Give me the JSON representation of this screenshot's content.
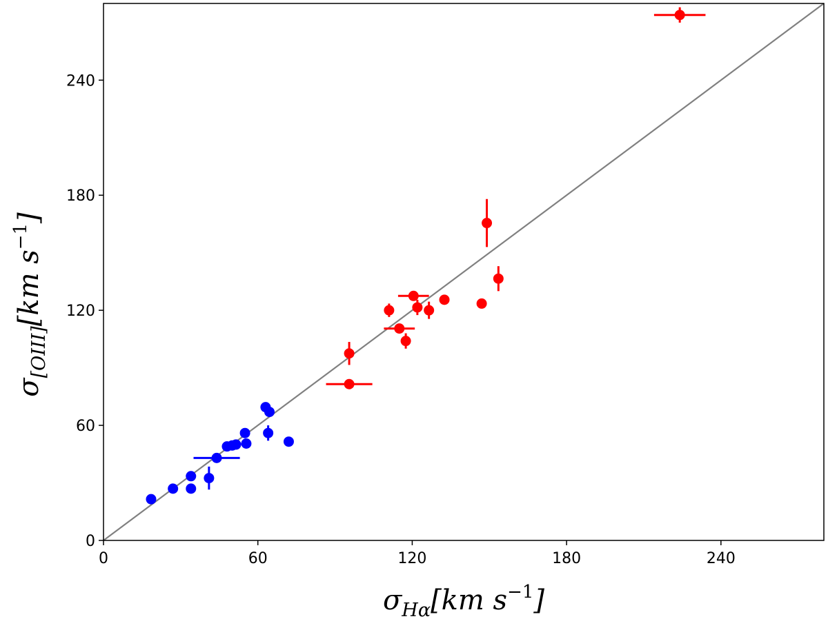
{
  "chart_data": {
    "type": "scatter",
    "title": "",
    "xlabel": {
      "sym": "σ",
      "sub": "Hα",
      "units_open": "[km s",
      "exp": "−1",
      "units_close": "]"
    },
    "ylabel": {
      "sym": "σ",
      "sub": "[OIII]",
      "units_open": "[km s",
      "exp": "−1",
      "units_close": "]"
    },
    "xlim": [
      0,
      280
    ],
    "ylim": [
      0,
      280
    ],
    "xticks": [
      0,
      60,
      120,
      180,
      240
    ],
    "yticks": [
      0,
      60,
      120,
      180,
      240
    ],
    "xtick_labels": [
      "0",
      "60",
      "120",
      "180",
      "240"
    ],
    "ytick_labels": [
      "0",
      "60",
      "120",
      "180",
      "240"
    ],
    "grid": false,
    "reference_line": {
      "name": "one-to-one",
      "color": "#808080",
      "x": [
        0,
        280
      ],
      "y": [
        0,
        280
      ]
    },
    "series": [
      {
        "name": "blue",
        "color": "#0000ff",
        "points": [
          {
            "x": 18.5,
            "y": 21.5,
            "xerr": 0,
            "yerr": 0
          },
          {
            "x": 27,
            "y": 27,
            "xerr": 0,
            "yerr": 0
          },
          {
            "x": 34,
            "y": 27,
            "xerr": 0,
            "yerr": 0
          },
          {
            "x": 34,
            "y": 33.5,
            "xerr": 0,
            "yerr": 0
          },
          {
            "x": 41,
            "y": 32.5,
            "xerr": 0,
            "yerr": 6
          },
          {
            "x": 44,
            "y": 43,
            "xerr": 9,
            "yerr": 0
          },
          {
            "x": 48,
            "y": 49,
            "xerr": 0,
            "yerr": 0
          },
          {
            "x": 50,
            "y": 49.5,
            "xerr": 0,
            "yerr": 0
          },
          {
            "x": 51.5,
            "y": 50,
            "xerr": 0,
            "yerr": 0
          },
          {
            "x": 55,
            "y": 56,
            "xerr": 0,
            "yerr": 0
          },
          {
            "x": 55.5,
            "y": 50.5,
            "xerr": 0,
            "yerr": 0
          },
          {
            "x": 63,
            "y": 69.5,
            "xerr": 0,
            "yerr": 0
          },
          {
            "x": 64,
            "y": 56,
            "xerr": 0,
            "yerr": 4
          },
          {
            "x": 64.5,
            "y": 67,
            "xerr": 0,
            "yerr": 0
          },
          {
            "x": 72,
            "y": 51.5,
            "xerr": 0,
            "yerr": 0
          }
        ]
      },
      {
        "name": "red",
        "color": "#ff0000",
        "points": [
          {
            "x": 95.5,
            "y": 81.5,
            "xerr": 9,
            "yerr": 0
          },
          {
            "x": 95.5,
            "y": 97.5,
            "xerr": 0,
            "yerr": 6
          },
          {
            "x": 111,
            "y": 120,
            "xerr": 0,
            "yerr": 3.5
          },
          {
            "x": 115,
            "y": 110.5,
            "xerr": 6,
            "yerr": 0
          },
          {
            "x": 117.5,
            "y": 104,
            "xerr": 0,
            "yerr": 4
          },
          {
            "x": 120.5,
            "y": 127.5,
            "xerr": 6,
            "yerr": 0
          },
          {
            "x": 122,
            "y": 121.5,
            "xerr": 0,
            "yerr": 4
          },
          {
            "x": 126.5,
            "y": 120,
            "xerr": 0,
            "yerr": 4.5
          },
          {
            "x": 132.5,
            "y": 125.5,
            "xerr": 0,
            "yerr": 0
          },
          {
            "x": 147,
            "y": 123.5,
            "xerr": 0,
            "yerr": 2
          },
          {
            "x": 149,
            "y": 165.5,
            "xerr": 0,
            "yerr": 12.5
          },
          {
            "x": 153.5,
            "y": 136.5,
            "xerr": 0,
            "yerr": 6.5
          },
          {
            "x": 224,
            "y": 274,
            "xerr": 10,
            "yerr": 4
          }
        ]
      }
    ]
  }
}
